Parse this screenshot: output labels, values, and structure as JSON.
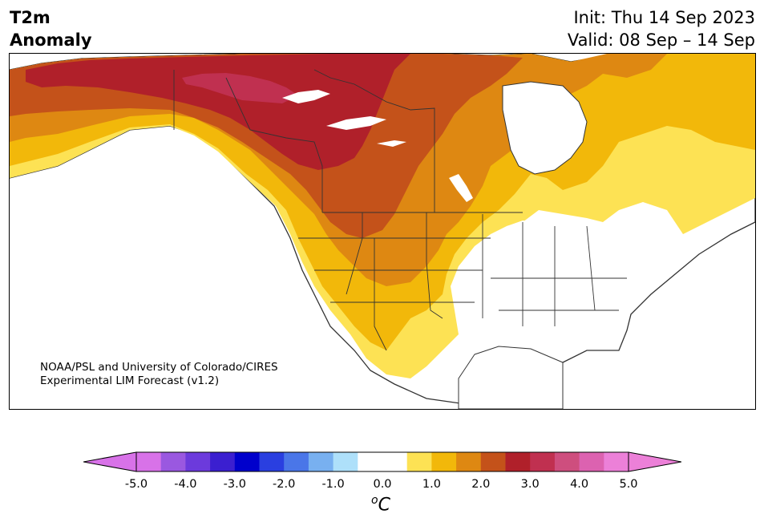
{
  "title": {
    "left_line1": "T2m",
    "left_line2": "Anomaly",
    "init": "Init: Thu 14 Sep 2023",
    "valid": "Valid: 08 Sep – 14 Sep"
  },
  "credit": {
    "line1": "NOAA/PSL and University of Colorado/CIRES",
    "line2": "Experimental LIM Forecast (v1.2)"
  },
  "colorbar": {
    "unit_base": "C",
    "unit_sup": "o",
    "ticks": [
      "-5.0",
      "-4.0",
      "-3.0",
      "-2.0",
      "-1.0",
      "0.0",
      "1.0",
      "2.0",
      "3.0",
      "4.0",
      "5.0"
    ],
    "colors": [
      "#d872e8",
      "#9a58e0",
      "#6c3adc",
      "#3b1fd0",
      "#0000cc",
      "#2a3fe0",
      "#4a76e8",
      "#78b0f0",
      "#aee0fa",
      "#ffffff",
      "#ffffff",
      "#fde254",
      "#f2b80a",
      "#de8812",
      "#c4521a",
      "#b0202a",
      "#c03050",
      "#ce4e7e",
      "#dc62b0",
      "#ec80d8"
    ],
    "under_color": "#d872e8",
    "over_color": "#ec80d8"
  },
  "palette": {
    "ocean": "#ffffff",
    "anom_0_5": "#fde254",
    "anom_1_0": "#f2b80a",
    "anom_1_5": "#de8812",
    "anom_2_0": "#c4521a",
    "anom_2_5": "#b0202a",
    "anom_3_0": "#c03050",
    "border": "#333333"
  }
}
